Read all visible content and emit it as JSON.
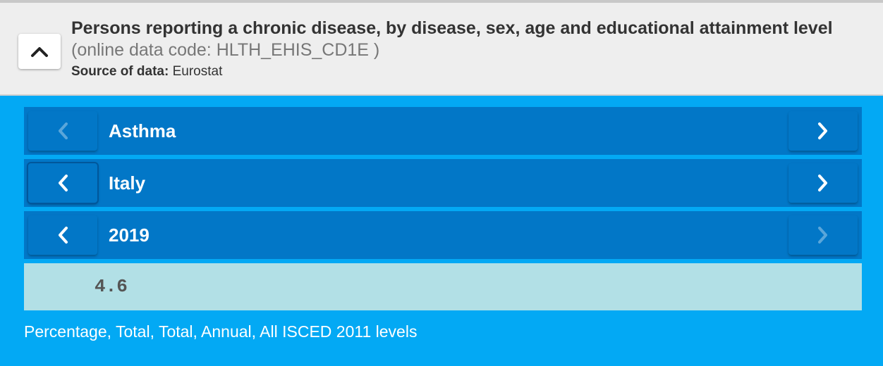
{
  "header": {
    "collapse_icon": "chevron-up-icon",
    "title": "Persons reporting a chronic disease, by disease, sex, age and educational attainment level",
    "code_line": "(online data code: HLTH_EHIS_CD1E )",
    "source_label": "Source of data:",
    "source_value": "Eurostat"
  },
  "selectors": {
    "disease": {
      "label": "Asthma",
      "prev_enabled": false,
      "next_enabled": true
    },
    "country": {
      "label": "Italy",
      "prev_enabled": true,
      "next_enabled": true
    },
    "year": {
      "label": "2019",
      "prev_enabled": true,
      "next_enabled": false
    }
  },
  "value": "4.6",
  "footnote": "Percentage, Total, Total, Annual, All ISCED 2011 levels",
  "colors": {
    "page_background": "#03a9f4",
    "selector_background": "#0277c7",
    "value_background": "#b2e0e6",
    "header_background": "#eeeeee"
  },
  "icons": {
    "prev": "chevron-left-icon",
    "next": "chevron-right-icon"
  }
}
